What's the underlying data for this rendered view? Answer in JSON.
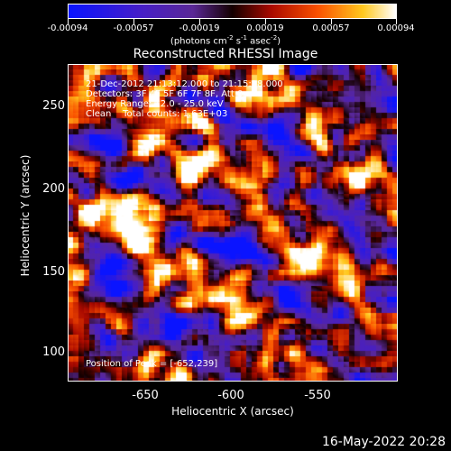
{
  "colorbar": {
    "ticks": [
      "-0.00094",
      "-0.00057",
      "-0.00019",
      "0.00019",
      "0.00057",
      "0.00094"
    ],
    "units_text": "(photons cm",
    "units_sup1": "-2",
    "units_mid": " s",
    "units_sup2": "-1",
    "units_end": " asec",
    "units_sup3": "-2",
    "units_close": ")"
  },
  "title": "Reconstructed RHESSI Image",
  "info": {
    "time_range": "21-Dec-2012 21:13:12.000 to 21:15:28.000",
    "detectors": "Detectors: 3F 4F 5F 6F 7F 8F, Att 0",
    "energy": "Energy Range: 12.0 - 25.0 keV",
    "clean": "Clean    Total counts: 1.63E+03",
    "peak": "Position of Peak = [-652,239]"
  },
  "axes": {
    "xlabel": "Heliocentric X (arcsec)",
    "ylabel": "Heliocentric Y (arcsec)",
    "xticks": [
      "-650",
      "-600",
      "-550"
    ],
    "yticks": [
      "250",
      "200",
      "150",
      "100"
    ]
  },
  "footer": "16-May-2022 20:28"
}
